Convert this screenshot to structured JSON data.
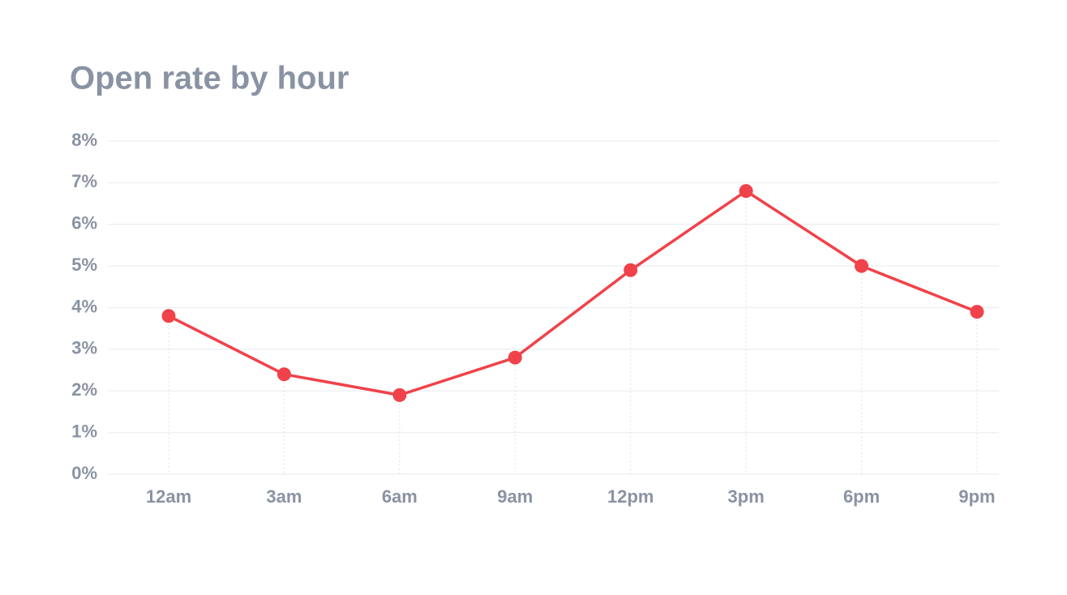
{
  "chart_data": {
    "type": "line",
    "title": "Open rate by hour",
    "categories": [
      "12am",
      "3am",
      "6am",
      "9am",
      "12pm",
      "3pm",
      "6pm",
      "9pm"
    ],
    "series": [
      {
        "name": "Open rate",
        "color": "#f0424a",
        "values": [
          3.8,
          2.4,
          1.9,
          2.8,
          4.9,
          6.8,
          5.0,
          3.9
        ]
      }
    ],
    "ylim": [
      0,
      8
    ],
    "yticks": [
      {
        "value": 0,
        "label": "0%"
      },
      {
        "value": 1,
        "label": "1%"
      },
      {
        "value": 2,
        "label": "2%"
      },
      {
        "value": 3,
        "label": "3%"
      },
      {
        "value": 4,
        "label": "4%"
      },
      {
        "value": 5,
        "label": "5%"
      },
      {
        "value": 6,
        "label": "6%"
      },
      {
        "value": 7,
        "label": "7%"
      },
      {
        "value": 8,
        "label": "8%"
      }
    ],
    "grid": true,
    "drop_lines": true
  }
}
